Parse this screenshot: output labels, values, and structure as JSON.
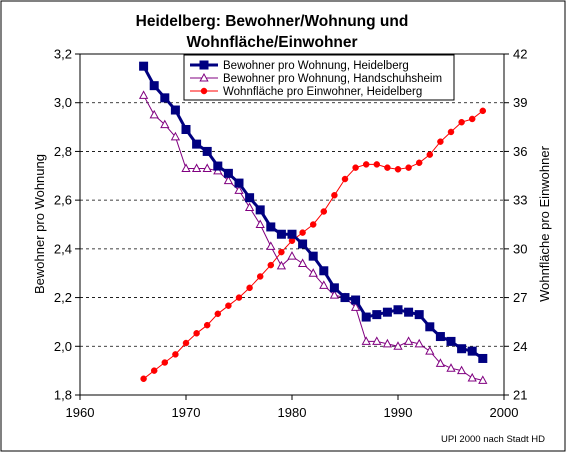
{
  "chart_data": {
    "type": "line",
    "title_line1": "Heidelberg: Bewohner/Wohnung und",
    "title_line2": "Wohnfläche/Einwohner",
    "ylabel_left": "Bewohner pro Wohnung",
    "ylabel_right": "Wohnfläche pro Einwohner",
    "credit": "UPI 2000 nach Stadt HD",
    "xlim": [
      1960,
      2000
    ],
    "x_ticks": [
      "1960",
      "1970",
      "1980",
      "1990",
      "2000"
    ],
    "ylim_left": [
      1.8,
      3.2
    ],
    "y_ticks_left": [
      "1,8",
      "2,0",
      "2,2",
      "2,4",
      "2,6",
      "2,8",
      "3,0",
      "3,2"
    ],
    "ylim_right": [
      21,
      42
    ],
    "y_ticks_right": [
      "21",
      "24",
      "27",
      "30",
      "33",
      "36",
      "39",
      "42"
    ],
    "grid": "horizontal dashed",
    "legend_position": "top-right",
    "series": [
      {
        "name": "Bewohner pro Wohnung, Heidelberg",
        "axis": "left",
        "color": "#000080",
        "marker": "square",
        "x": [
          1966,
          1967,
          1968,
          1969,
          1970,
          1971,
          1972,
          1973,
          1974,
          1975,
          1976,
          1977,
          1978,
          1979,
          1980,
          1981,
          1982,
          1983,
          1984,
          1985,
          1986,
          1987,
          1988,
          1989,
          1990,
          1991,
          1992,
          1993,
          1994,
          1995,
          1996,
          1997,
          1998
        ],
        "y": [
          3.15,
          3.07,
          3.02,
          2.97,
          2.89,
          2.83,
          2.8,
          2.74,
          2.71,
          2.67,
          2.61,
          2.56,
          2.49,
          2.46,
          2.46,
          2.42,
          2.37,
          2.31,
          2.24,
          2.2,
          2.19,
          2.12,
          2.13,
          2.14,
          2.15,
          2.14,
          2.13,
          2.08,
          2.04,
          2.02,
          1.99,
          1.98,
          1.95
        ]
      },
      {
        "name": "Bewohner pro Wohnung, Handschuhsheim",
        "axis": "left",
        "color": "#800080",
        "marker": "triangle",
        "x": [
          1966,
          1967,
          1968,
          1969,
          1970,
          1971,
          1972,
          1973,
          1974,
          1975,
          1976,
          1977,
          1978,
          1979,
          1980,
          1981,
          1982,
          1983,
          1984,
          1985,
          1986,
          1987,
          1988,
          1989,
          1990,
          1991,
          1992,
          1993,
          1994,
          1995,
          1996,
          1997,
          1998
        ],
        "y": [
          3.03,
          2.95,
          2.91,
          2.86,
          2.73,
          2.73,
          2.73,
          2.72,
          2.68,
          2.64,
          2.57,
          2.5,
          2.41,
          2.33,
          2.37,
          2.34,
          2.3,
          2.25,
          2.21,
          2.2,
          2.16,
          2.02,
          2.02,
          2.01,
          2.0,
          2.02,
          2.01,
          1.98,
          1.93,
          1.91,
          1.9,
          1.87,
          1.86
        ]
      },
      {
        "name": "Wohnfläche pro Einwohner, Heidelberg",
        "axis": "right",
        "color": "#ff0000",
        "marker": "circle",
        "x": [
          1966,
          1967,
          1968,
          1969,
          1970,
          1971,
          1972,
          1973,
          1974,
          1975,
          1976,
          1977,
          1978,
          1979,
          1980,
          1981,
          1982,
          1983,
          1984,
          1985,
          1986,
          1987,
          1988,
          1989,
          1990,
          1991,
          1992,
          1993,
          1994,
          1995,
          1996,
          1997,
          1998
        ],
        "y": [
          22.0,
          22.5,
          23.0,
          23.5,
          24.2,
          24.8,
          25.3,
          26.0,
          26.5,
          27.0,
          27.6,
          28.3,
          29.0,
          29.8,
          30.5,
          31.0,
          31.5,
          32.3,
          33.3,
          34.3,
          35.0,
          35.2,
          35.2,
          35.0,
          34.9,
          35.0,
          35.3,
          35.8,
          36.6,
          37.2,
          37.8,
          38.0,
          38.5
        ]
      }
    ]
  }
}
